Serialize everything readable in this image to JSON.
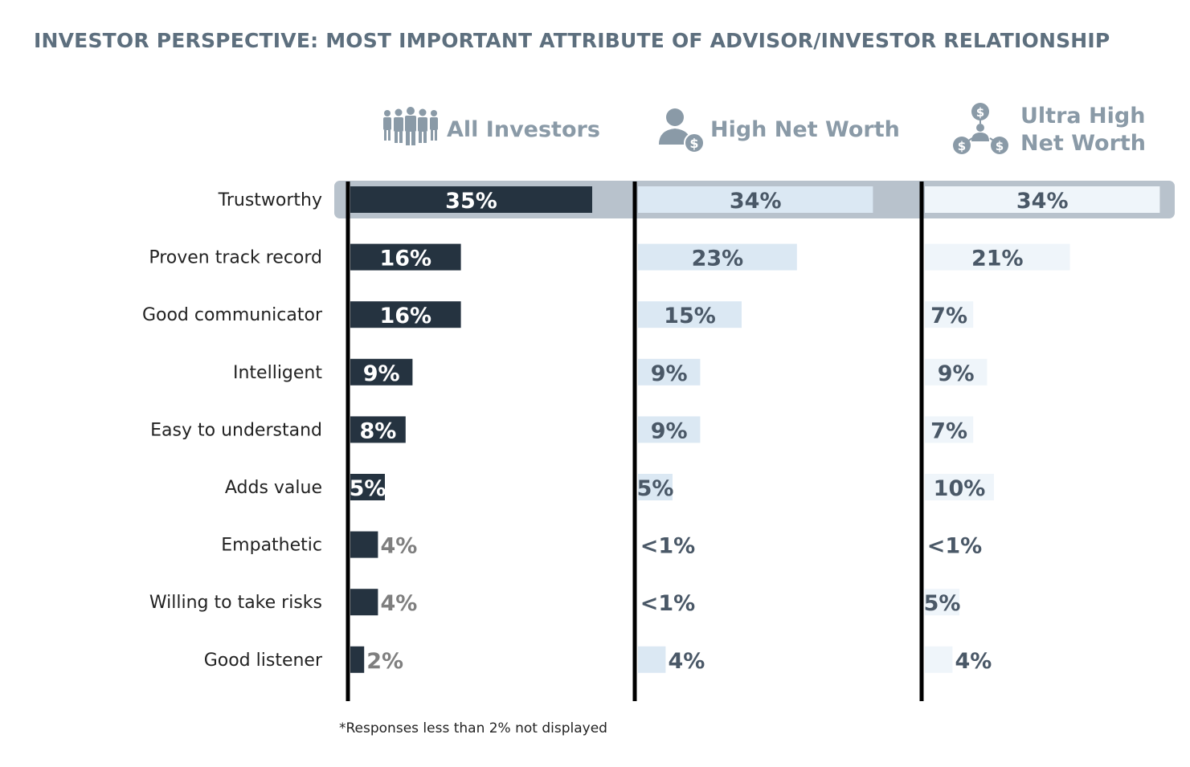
{
  "title": "INVESTOR PERSPECTIVE: MOST IMPORTANT ATTRIBUTE OF ADVISOR/INVESTOR RELATIONSHIP",
  "footnote": "*Responses less than 2% not displayed",
  "colors": {
    "all_investors": "#253340",
    "high_net_worth": "#dbe8f3",
    "ultra_high_net_worth": "#eff5fa",
    "highlight_band": "#b8c2cc",
    "header_text": "#8a9aa7",
    "title_text": "#5d6f7e"
  },
  "panels": [
    {
      "label": "All Investors",
      "lines": [
        "All Investors"
      ],
      "icon": "people-group-icon"
    },
    {
      "label": "High Net Worth",
      "lines": [
        "High Net Worth"
      ],
      "icon": "person-dollar-icon"
    },
    {
      "label": "Ultra High Net Worth",
      "lines": [
        "Ultra High",
        "Net Worth"
      ],
      "icon": "network-dollar-icon"
    }
  ],
  "chart_data": {
    "type": "bar",
    "orientation": "horizontal",
    "title": "INVESTOR PERSPECTIVE: MOST IMPORTANT ATTRIBUTE OF ADVISOR/INVESTOR RELATIONSHIP",
    "categories": [
      "Trustworthy",
      "Proven track record",
      "Good communicator",
      "Intelligent",
      "Easy to understand",
      "Adds value",
      "Empathetic",
      "Willing to take risks",
      "Good listener"
    ],
    "highlighted_category": "Trustworthy",
    "series": [
      {
        "name": "All Investors",
        "values": [
          35,
          16,
          16,
          9,
          8,
          5,
          4,
          4,
          2
        ],
        "labels": [
          "35%",
          "16%",
          "16%",
          "9%",
          "8%",
          "5%",
          "4%",
          "4%",
          "2%"
        ]
      },
      {
        "name": "High Net Worth",
        "values": [
          34,
          23,
          15,
          9,
          9,
          5,
          0.5,
          0.5,
          4
        ],
        "labels": [
          "34%",
          "23%",
          "15%",
          "9%",
          "9%",
          "5%",
          "<1%",
          "<1%",
          "4%"
        ]
      },
      {
        "name": "Ultra High Net Worth",
        "values": [
          34,
          21,
          7,
          9,
          7,
          10,
          0.5,
          5,
          4
        ],
        "labels": [
          "34%",
          "21%",
          "7%",
          "9%",
          "7%",
          "10%",
          "<1%",
          "5%",
          "4%"
        ]
      }
    ],
    "unit": "%"
  }
}
